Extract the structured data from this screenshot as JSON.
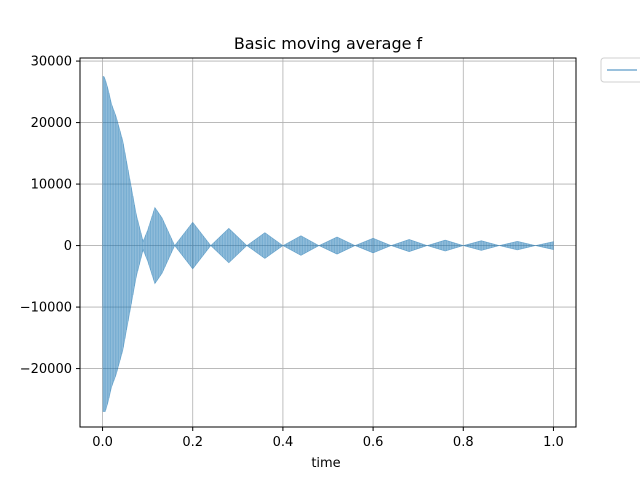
{
  "chart_data": {
    "type": "line",
    "title": "Basic moving average f",
    "xlabel": "time",
    "ylabel": "",
    "xlim": [
      -0.05,
      1.05
    ],
    "ylim": [
      -29500,
      30500
    ],
    "grid": true,
    "legend": {
      "placement": "outside-top-right",
      "entries": [
        {
          "label": "",
          "color": "#1f77b4"
        }
      ]
    },
    "x_ticks": [
      {
        "value": 0.0,
        "label": "0.0"
      },
      {
        "value": 0.2,
        "label": "0.2"
      },
      {
        "value": 0.4,
        "label": "0.4"
      },
      {
        "value": 0.6,
        "label": "0.6"
      },
      {
        "value": 0.8,
        "label": "0.8"
      },
      {
        "value": 1.0,
        "label": "1.0"
      }
    ],
    "y_ticks": [
      {
        "value": 30000,
        "label": "30000"
      },
      {
        "value": 20000,
        "label": "20000"
      },
      {
        "value": 10000,
        "label": "10000"
      },
      {
        "value": 0,
        "label": "0"
      },
      {
        "value": -10000,
        "label": "−10000"
      },
      {
        "value": -20000,
        "label": "−20000"
      }
    ],
    "series": [
      {
        "color": "#1f77b4",
        "alpha": 0.5,
        "style": "oscillating envelope",
        "envelope": {
          "x": [
            0.0,
            0.001,
            0.003,
            0.006,
            0.012,
            0.02,
            0.03,
            0.045,
            0.06,
            0.075,
            0.09,
            0.1,
            0.116,
            0.132,
            0.16,
            0.2,
            0.24,
            0.28,
            0.32,
            0.36,
            0.4,
            0.44,
            0.48,
            0.52,
            0.56,
            0.6,
            0.64,
            0.68,
            0.72,
            0.76,
            0.8,
            0.84,
            0.88,
            0.92,
            0.96,
            1.0
          ],
          "upper": [
            0,
            27500,
            27500,
            27000,
            25500,
            23000,
            21000,
            17000,
            11000,
            5000,
            700,
            2500,
            6200,
            4500,
            0,
            3800,
            0,
            2800,
            0,
            2100,
            0,
            1600,
            0,
            1400,
            0,
            1200,
            0,
            1000,
            0,
            900,
            0,
            800,
            0,
            700,
            0,
            650
          ],
          "lower": [
            0,
            -27000,
            -27000,
            -27000,
            -25500,
            -23000,
            -21000,
            -17000,
            -11000,
            -5000,
            -700,
            -2500,
            -6200,
            -4500,
            0,
            -3800,
            0,
            -2800,
            0,
            -2100,
            0,
            -1600,
            0,
            -1400,
            0,
            -1200,
            0,
            -1000,
            0,
            -900,
            0,
            -800,
            0,
            -700,
            0,
            -650
          ]
        }
      }
    ]
  }
}
